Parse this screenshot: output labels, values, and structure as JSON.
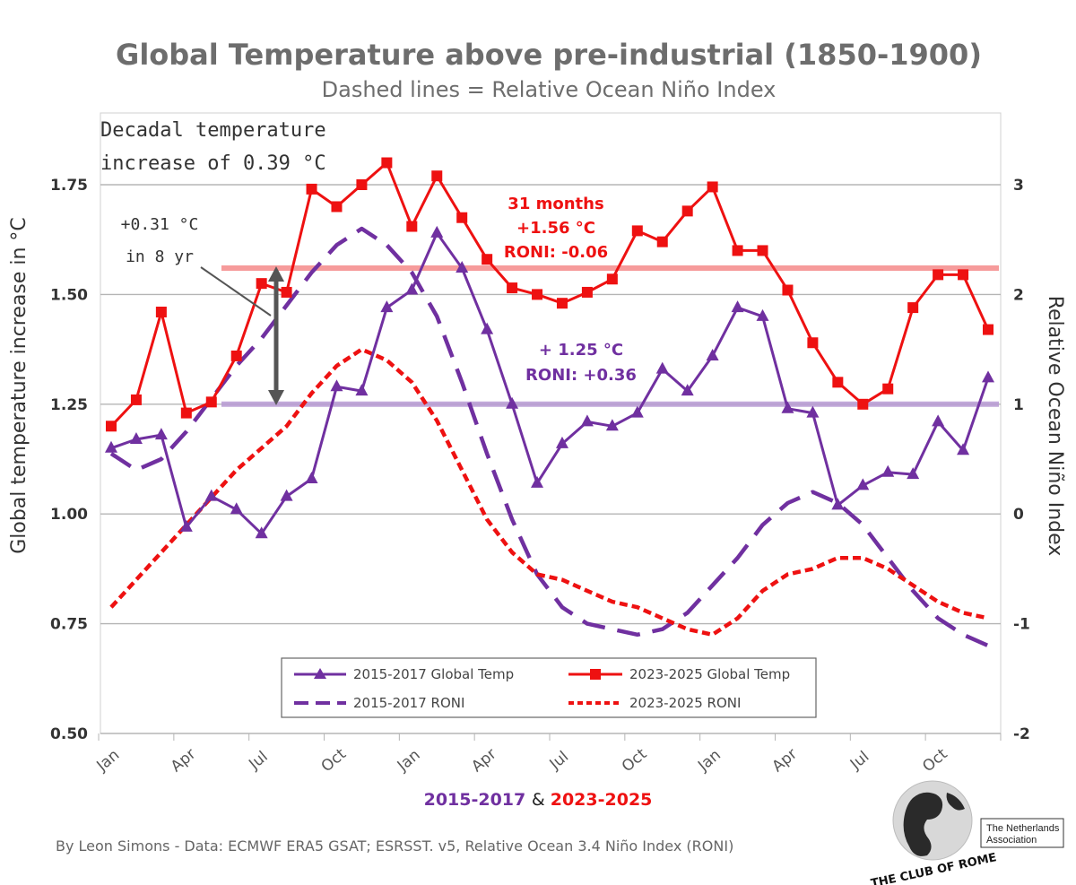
{
  "chart_data": {
    "type": "line",
    "title": "Global Temperature above pre-industrial (1850-1900)",
    "subtitle": "Dashed lines = Relative Ocean Niño Index",
    "ylabel": "Global temperature increase in °C",
    "y2label": "Relative Ocean Niño Index",
    "ylim": [
      0.5,
      1.75
    ],
    "y2lim": [
      -2,
      3
    ],
    "yticks": [
      "0.50",
      "0.75",
      "1.00",
      "1.25",
      "1.50",
      "1.75"
    ],
    "y2ticks": [
      "-2",
      "-1",
      "0",
      "1",
      "2",
      "3"
    ],
    "x_labels": [
      "Jan",
      "Apr",
      "Jul",
      "Oct",
      "Jan",
      "Apr",
      "Jul",
      "Oct",
      "Jan",
      "Apr",
      "Jul",
      "Oct"
    ],
    "x_label_months": [
      1,
      4,
      7,
      10,
      13,
      16,
      19,
      22,
      25,
      28,
      31,
      34
    ],
    "grid": "horizontal",
    "colors": {
      "purple": "#7030a0",
      "red": "#ee1111",
      "red_band": "#f58a8a",
      "purple_band": "#b79ad3"
    },
    "series": [
      {
        "name": "2015-2017 Global Temp",
        "axis": "left",
        "style": "solid-triangle",
        "color": "#7030a0",
        "values": [
          1.15,
          1.17,
          1.18,
          0.97,
          1.04,
          1.01,
          0.955,
          1.04,
          1.08,
          1.29,
          1.28,
          1.47,
          1.51,
          1.64,
          1.56,
          1.42,
          1.25,
          1.07,
          1.16,
          1.21,
          1.2,
          1.23,
          1.33,
          1.28,
          1.36,
          1.47,
          1.45,
          1.24,
          1.23,
          1.02,
          1.065,
          1.095,
          1.09,
          1.21,
          1.145,
          1.31
        ]
      },
      {
        "name": "2023-2025 Global Temp",
        "axis": "left",
        "style": "solid-square",
        "color": "#ee1111",
        "values": [
          1.2,
          1.26,
          1.46,
          1.23,
          1.255,
          1.36,
          1.525,
          1.505,
          1.74,
          1.7,
          1.75,
          1.8,
          1.655,
          1.77,
          1.675,
          1.58,
          1.515,
          1.5,
          1.48,
          1.505,
          1.535,
          1.645,
          1.62,
          1.69,
          1.745,
          1.6,
          1.6,
          1.51,
          1.39,
          1.3,
          1.25,
          1.285,
          1.47,
          1.545,
          1.545,
          1.42
        ]
      },
      {
        "name": "2015-2017 RONI",
        "axis": "right",
        "style": "dashed",
        "color": "#7030a0",
        "values": [
          0.55,
          0.4,
          0.5,
          0.75,
          1.05,
          1.35,
          1.6,
          1.9,
          2.2,
          2.45,
          2.6,
          2.45,
          2.2,
          1.8,
          1.2,
          0.55,
          -0.05,
          -0.55,
          -0.85,
          -1.0,
          -1.05,
          -1.1,
          -1.05,
          -0.9,
          -0.65,
          -0.4,
          -0.1,
          0.1,
          0.2,
          0.1,
          -0.1,
          -0.4,
          -0.7,
          -0.95,
          -1.1,
          -1.2
        ]
      },
      {
        "name": "2023-2025 RONI",
        "axis": "right",
        "style": "dotted",
        "color": "#ee1111",
        "values": [
          -0.85,
          -0.6,
          -0.35,
          -0.1,
          0.15,
          0.4,
          0.6,
          0.8,
          1.1,
          1.35,
          1.5,
          1.4,
          1.2,
          0.85,
          0.4,
          -0.05,
          -0.35,
          -0.55,
          -0.6,
          -0.7,
          -0.8,
          -0.85,
          -0.95,
          -1.05,
          -1.1,
          -0.95,
          -0.7,
          -0.55,
          -0.5,
          -0.4,
          -0.4,
          -0.5,
          -0.65,
          -0.8,
          -0.9,
          -0.95
        ]
      }
    ],
    "reference_lines": [
      {
        "value": 1.56,
        "color": "#f58a8a",
        "from_month": 5.4,
        "to_month": 36
      },
      {
        "value": 1.25,
        "color": "#b79ad3",
        "from_month": 5.4,
        "to_month": 36
      }
    ],
    "annotations": {
      "red_block": [
        "31 months",
        "+1.56 °C",
        "RONI: -0.06"
      ],
      "purple_block": [
        "+ 1.25 °C",
        "RONI: +0.36"
      ],
      "decadal": [
        "Decadal temperature",
        "increase of 0.39 °C"
      ],
      "eight_yr": [
        "+0.31 °C",
        "in 8 yr"
      ]
    },
    "legend": {
      "placement": "bottom-center",
      "items": [
        "2015-2017 Global Temp",
        "2023-2025 Global Temp",
        "2015-2017 RONI",
        "2023-2025 RONI"
      ]
    },
    "period_label": {
      "a": "2015-2017",
      "amp": "&",
      "b": "2023-2025"
    }
  },
  "footer": {
    "credit": "By Leon Simons - Data: ECMWF ERA5 GSAT; ESRSST. v5, Relative Ocean 3.4 Niño Index (RONI)",
    "logo_text": "THE CLUB OF ROME",
    "association_line1": "The Netherlands",
    "association_line2": "Association"
  }
}
